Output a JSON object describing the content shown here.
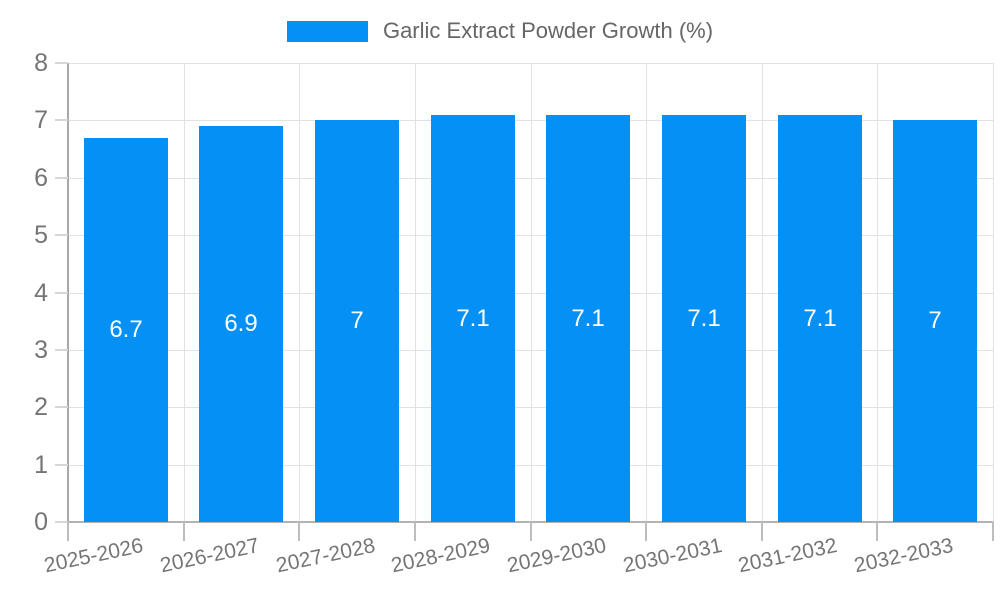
{
  "chart_data": {
    "type": "bar",
    "legend": [
      "Garlic Extract Powder Growth (%)"
    ],
    "legend_position": "top",
    "categories": [
      "2025-2026",
      "2026-2027",
      "2027-2028",
      "2028-2029",
      "2029-2030",
      "2030-2031",
      "2031-2032",
      "2032-2033"
    ],
    "series": [
      {
        "name": "Garlic Extract Powder Growth (%)",
        "values": [
          6.7,
          6.9,
          7,
          7.1,
          7.1,
          7.1,
          7.1,
          7
        ],
        "labels": [
          "6.7",
          "6.9",
          "7",
          "7.1",
          "7.1",
          "7.1",
          "7.1",
          "7"
        ]
      }
    ],
    "xlabel": "",
    "ylabel": "",
    "ylim": [
      0,
      8
    ],
    "yticks": [
      0,
      1,
      2,
      3,
      4,
      5,
      6,
      7,
      8
    ],
    "grid": true,
    "x_tick_rotation_deg": -12,
    "colors": {
      "bar": "#0590F5",
      "bar_label": "#ffffff",
      "axis_text": "#757575",
      "legend_text": "#666666",
      "grid_line": "#e2e2e2",
      "axis_line": "#b0b0b0",
      "background": "#ffffff"
    }
  }
}
